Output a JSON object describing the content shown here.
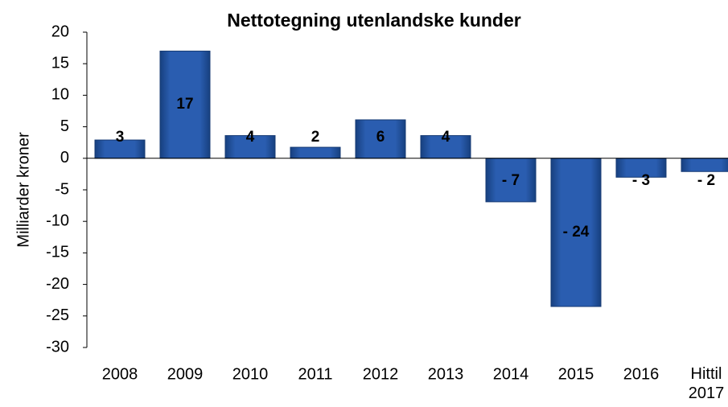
{
  "chart_data": {
    "type": "bar",
    "title": "Nettotegning utenlandske kunder",
    "y_label": "Milliarder kroner",
    "categories": [
      "2008",
      "2009",
      "2010",
      "2011",
      "2012",
      "2013",
      "2014",
      "2015",
      "2016",
      "Hittil 2017"
    ],
    "values": [
      2.9,
      17,
      3.6,
      1.75,
      6.1,
      3.6,
      -6.9,
      -23.5,
      -3,
      -2.1
    ],
    "value_labels": [
      "3",
      "17",
      "4",
      "2",
      "6",
      "4",
      "- 7",
      "- 24",
      "- 3",
      "- 2"
    ],
    "color": "#1f4e9c",
    "ylim": [
      -30,
      20
    ],
    "yticks": [
      -30,
      -25,
      -20,
      -15,
      -10,
      -5,
      0,
      5,
      10,
      15,
      20
    ],
    "grid": false
  }
}
